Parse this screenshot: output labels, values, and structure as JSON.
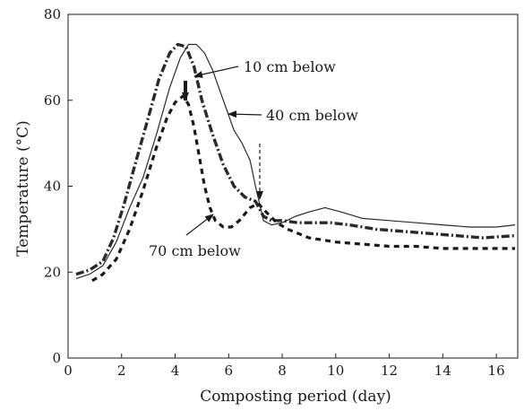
{
  "chart_data": {
    "type": "line",
    "title": "",
    "xlabel": "Composting period (day)",
    "ylabel": "Temperature (°C)",
    "xlim": [
      0,
      16.8
    ],
    "ylim": [
      0,
      80
    ],
    "x_ticks": [
      0,
      2,
      4,
      6,
      8,
      10,
      12,
      14,
      16
    ],
    "y_ticks": [
      0,
      20,
      40,
      60,
      80
    ],
    "grid": false,
    "legend": "none",
    "annotations": [
      {
        "text": "10 cm below",
        "series": "10 cm below"
      },
      {
        "text": "40 cm below",
        "series": "40 cm below"
      },
      {
        "text": "70 cm below",
        "series": "70 cm below"
      }
    ],
    "series": [
      {
        "name": "10 cm below",
        "style": "dash-dot",
        "color": "#2a2a2a",
        "x": [
          0.3,
          0.8,
          1.3,
          1.7,
          2.1,
          2.5,
          3.0,
          3.4,
          3.8,
          4.1,
          4.4,
          4.7,
          5.0,
          5.4,
          5.8,
          6.2,
          6.6,
          7.0,
          7.3,
          7.6,
          8.0,
          8.6,
          9.2,
          9.8,
          10.5,
          11.5,
          12.5,
          13.5,
          14.5,
          15.5,
          16.7
        ],
        "y": [
          19.5,
          20.5,
          22.5,
          28,
          36,
          45,
          56,
          65,
          71,
          73,
          72.5,
          68,
          60,
          52,
          45,
          40,
          37.5,
          36.5,
          33,
          32,
          32,
          31.5,
          31.5,
          31.5,
          31,
          30,
          29.5,
          29,
          28.5,
          28,
          28.5
        ]
      },
      {
        "name": "40 cm below",
        "style": "solid",
        "color": "#2a2a2a",
        "x": [
          0.3,
          0.8,
          1.3,
          1.8,
          2.3,
          2.8,
          3.3,
          3.8,
          4.2,
          4.5,
          4.8,
          5.1,
          5.4,
          5.8,
          6.2,
          6.5,
          6.8,
          7.0,
          7.3,
          7.6,
          8.0,
          8.5,
          9.0,
          9.6,
          10.2,
          11.0,
          12.0,
          13.0,
          14.0,
          15.0,
          16.0,
          16.7
        ],
        "y": [
          18.5,
          19.5,
          21.5,
          27,
          35,
          42,
          52,
          63,
          70,
          73,
          73,
          71,
          67,
          60,
          53,
          50,
          46,
          40,
          32,
          31,
          31.5,
          33,
          34,
          35,
          34,
          32.5,
          32,
          31.5,
          31,
          30.5,
          30.5,
          31
        ]
      },
      {
        "name": "70 cm below",
        "style": "dashed",
        "color": "#1a1a1a",
        "x": [
          0.9,
          1.3,
          1.8,
          2.3,
          2.8,
          3.3,
          3.7,
          4.0,
          4.3,
          4.5,
          4.7,
          4.9,
          5.1,
          5.3,
          5.5,
          5.8,
          6.1,
          6.4,
          6.8,
          7.1,
          7.4,
          7.8,
          8.2,
          8.6,
          9.0,
          10.0,
          11.0,
          12.0,
          13.0,
          14.0,
          15.0,
          16.0,
          16.7
        ],
        "y": [
          18,
          19.5,
          23,
          30,
          39,
          49,
          56,
          59.5,
          61,
          59,
          54,
          47,
          40,
          35,
          32,
          30.5,
          30.5,
          32,
          35,
          36,
          34,
          31.5,
          30,
          29,
          28,
          27,
          26.5,
          26,
          26,
          25.5,
          25.5,
          25.5,
          25.5
        ]
      }
    ]
  }
}
